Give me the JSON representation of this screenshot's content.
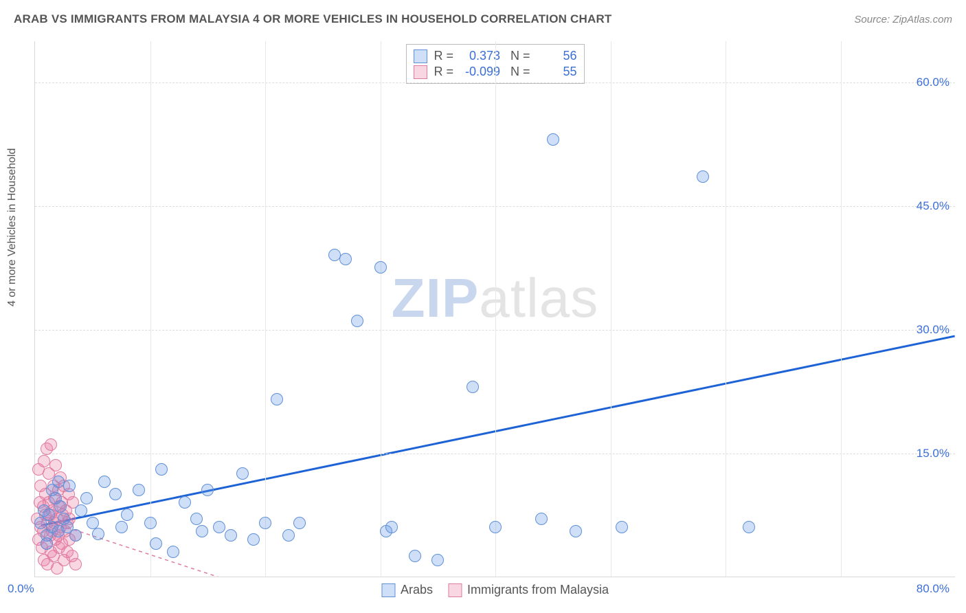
{
  "header": {
    "title": "ARAB VS IMMIGRANTS FROM MALAYSIA 4 OR MORE VEHICLES IN HOUSEHOLD CORRELATION CHART",
    "source_label": "Source: ",
    "source_value": "ZipAtlas.com"
  },
  "chart": {
    "type": "scatter",
    "ylabel": "4 or more Vehicles in Household",
    "xlim": [
      0,
      80
    ],
    "ylim": [
      0,
      65
    ],
    "x_ticks": [
      {
        "v": 0,
        "l": "0.0%"
      },
      {
        "v": 80,
        "l": "80.0%"
      }
    ],
    "y_ticks": [
      {
        "v": 15,
        "l": "15.0%"
      },
      {
        "v": 30,
        "l": "30.0%"
      },
      {
        "v": 45,
        "l": "45.0%"
      },
      {
        "v": 60,
        "l": "60.0%"
      }
    ],
    "x_grid": [
      10,
      20,
      30,
      40,
      50,
      60,
      70
    ],
    "background_color": "#ffffff",
    "grid_color": "#dddddd",
    "marker_radius": 9,
    "marker_stroke_width": 1.5,
    "watermark": {
      "part1": "ZIP",
      "part2": "atlas"
    },
    "series": {
      "arabs": {
        "label": "Arabs",
        "fill": "rgba(96,150,228,0.30)",
        "stroke": "#5e8fd8",
        "R": "0.373",
        "N": "56",
        "trend": {
          "color": "#1e63d6",
          "width": 3,
          "dash": "none",
          "p1": [
            0.5,
            6.2
          ],
          "p2": [
            80,
            29.2
          ]
        },
        "points": [
          [
            0.5,
            6.5
          ],
          [
            0.8,
            8.0
          ],
          [
            1.0,
            5.0
          ],
          [
            1.2,
            7.5
          ],
          [
            1.5,
            6.0
          ],
          [
            1.8,
            9.5
          ],
          [
            2.0,
            5.5
          ],
          [
            2.2,
            8.5
          ],
          [
            2.5,
            7.0
          ],
          [
            2.8,
            6.0
          ],
          [
            3.0,
            11.0
          ],
          [
            3.5,
            5.0
          ],
          [
            4.0,
            8.0
          ],
          [
            4.5,
            9.5
          ],
          [
            5.0,
            6.5
          ],
          [
            5.5,
            5.2
          ],
          [
            6.0,
            11.5
          ],
          [
            7.0,
            10.0
          ],
          [
            7.5,
            6.0
          ],
          [
            8.0,
            7.5
          ],
          [
            9.0,
            10.5
          ],
          [
            10.0,
            6.5
          ],
          [
            10.5,
            4.0
          ],
          [
            11.0,
            13.0
          ],
          [
            12.0,
            3.0
          ],
          [
            13.0,
            9.0
          ],
          [
            14.0,
            7.0
          ],
          [
            14.5,
            5.5
          ],
          [
            15.0,
            10.5
          ],
          [
            16.0,
            6.0
          ],
          [
            17.0,
            5.0
          ],
          [
            18.0,
            12.5
          ],
          [
            19.0,
            4.5
          ],
          [
            20.0,
            6.5
          ],
          [
            21.0,
            21.5
          ],
          [
            22.0,
            5.0
          ],
          [
            23.0,
            6.5
          ],
          [
            26.0,
            39.0
          ],
          [
            27.0,
            38.5
          ],
          [
            28.0,
            31.0
          ],
          [
            30.0,
            37.5
          ],
          [
            30.5,
            5.5
          ],
          [
            31.0,
            6.0
          ],
          [
            33.0,
            2.5
          ],
          [
            35.0,
            2.0
          ],
          [
            38.0,
            23.0
          ],
          [
            40.0,
            6.0
          ],
          [
            44.0,
            7.0
          ],
          [
            45.0,
            53.0
          ],
          [
            47.0,
            5.5
          ],
          [
            51.0,
            6.0
          ],
          [
            58.0,
            48.5
          ],
          [
            62.0,
            6.0
          ],
          [
            1.0,
            4.0
          ],
          [
            1.5,
            10.5
          ],
          [
            2.0,
            11.5
          ]
        ]
      },
      "malaysia": {
        "label": "Immigrants from Malaysia",
        "fill": "rgba(233,120,160,0.30)",
        "stroke": "#e17aa0",
        "R": "-0.099",
        "N": "55",
        "trend": {
          "color": "#e17aa0",
          "width": 1.5,
          "dash": "5,5",
          "p1": [
            0.5,
            7.0
          ],
          "p2": [
            18,
            -1
          ]
        },
        "points": [
          [
            0.2,
            7.0
          ],
          [
            0.3,
            4.5
          ],
          [
            0.4,
            9.0
          ],
          [
            0.5,
            6.0
          ],
          [
            0.5,
            11.0
          ],
          [
            0.6,
            3.5
          ],
          [
            0.7,
            8.5
          ],
          [
            0.7,
            5.5
          ],
          [
            0.8,
            14.0
          ],
          [
            0.8,
            2.0
          ],
          [
            0.9,
            7.5
          ],
          [
            0.9,
            10.0
          ],
          [
            1.0,
            4.0
          ],
          [
            1.0,
            15.5
          ],
          [
            1.1,
            6.5
          ],
          [
            1.1,
            1.5
          ],
          [
            1.2,
            9.0
          ],
          [
            1.2,
            12.5
          ],
          [
            1.3,
            5.0
          ],
          [
            1.3,
            7.5
          ],
          [
            1.4,
            3.0
          ],
          [
            1.4,
            16.0
          ],
          [
            1.5,
            8.0
          ],
          [
            1.5,
            5.5
          ],
          [
            1.6,
            11.0
          ],
          [
            1.6,
            2.5
          ],
          [
            1.7,
            6.5
          ],
          [
            1.7,
            9.5
          ],
          [
            1.8,
            4.5
          ],
          [
            1.8,
            13.5
          ],
          [
            1.9,
            7.0
          ],
          [
            1.9,
            1.0
          ],
          [
            2.0,
            10.5
          ],
          [
            2.0,
            5.0
          ],
          [
            2.1,
            8.5
          ],
          [
            2.1,
            3.5
          ],
          [
            2.2,
            6.0
          ],
          [
            2.2,
            12.0
          ],
          [
            2.3,
            4.0
          ],
          [
            2.3,
            9.0
          ],
          [
            2.4,
            7.5
          ],
          [
            2.5,
            2.0
          ],
          [
            2.5,
            11.0
          ],
          [
            2.6,
            5.5
          ],
          [
            2.7,
            8.0
          ],
          [
            2.8,
            3.0
          ],
          [
            2.8,
            6.5
          ],
          [
            2.9,
            10.0
          ],
          [
            3.0,
            4.5
          ],
          [
            3.0,
            7.0
          ],
          [
            3.2,
            2.5
          ],
          [
            3.3,
            9.0
          ],
          [
            3.5,
            5.0
          ],
          [
            3.5,
            1.5
          ],
          [
            0.3,
            13.0
          ]
        ]
      }
    }
  }
}
